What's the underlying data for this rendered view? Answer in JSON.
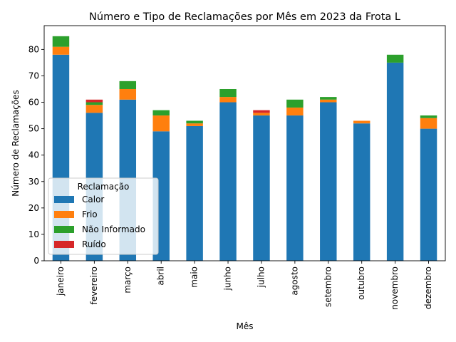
{
  "chart_data": {
    "type": "bar",
    "stacked": true,
    "title": "Número e Tipo de Reclamações por Mês em 2023 da Frota L",
    "xlabel": "Mês",
    "ylabel": "Número de Reclamações",
    "ylim": [
      0,
      89
    ],
    "yticks": [
      0,
      10,
      20,
      30,
      40,
      50,
      60,
      70,
      80
    ],
    "grid": false,
    "legend": {
      "title": "Reclamação",
      "position": "lower-left"
    },
    "categories": [
      "janeiro",
      "fevereiro",
      "março",
      "abril",
      "maio",
      "junho",
      "julho",
      "agosto",
      "setembro",
      "outubro",
      "novembro",
      "dezembro"
    ],
    "series": [
      {
        "name": "Calor",
        "color": "#1f77b4",
        "values": [
          78,
          56,
          61,
          49,
          51,
          60,
          55,
          55,
          60,
          52,
          75,
          50
        ]
      },
      {
        "name": "Frio",
        "color": "#ff7f0e",
        "values": [
          3,
          3,
          4,
          6,
          1,
          2,
          1,
          3,
          1,
          1,
          0,
          4
        ]
      },
      {
        "name": "Não Informado",
        "color": "#2ca02c",
        "values": [
          4,
          1,
          3,
          2,
          1,
          3,
          0,
          3,
          1,
          0,
          3,
          1
        ]
      },
      {
        "name": "Ruído",
        "color": "#d62728",
        "values": [
          0,
          1,
          0,
          0,
          0,
          0,
          1,
          0,
          0,
          0,
          0,
          0
        ]
      }
    ]
  }
}
